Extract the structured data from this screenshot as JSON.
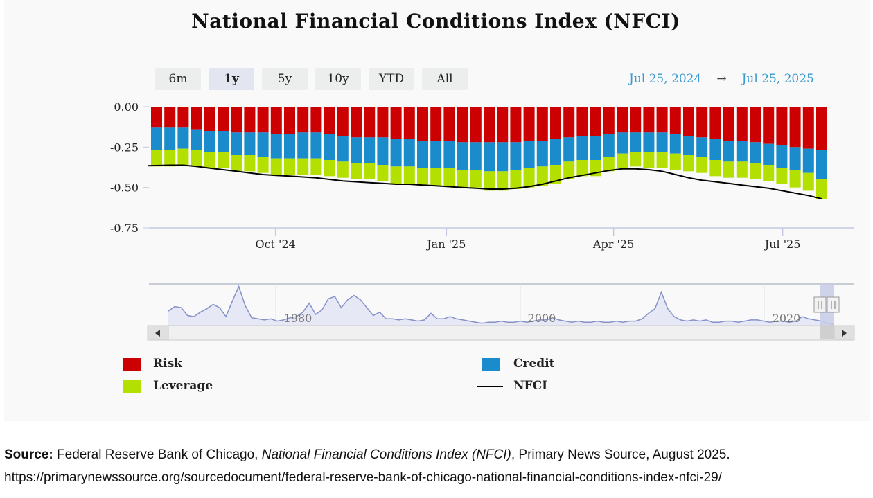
{
  "chart_data": {
    "type": "bar",
    "title": "National Financial Conditions Index (NFCI)",
    "range_buttons": [
      "6m",
      "1y",
      "5y",
      "10y",
      "YTD",
      "All"
    ],
    "active_range": "1y",
    "date_from": "Jul 25, 2024",
    "date_arrow": "→",
    "date_to": "Jul 25, 2025",
    "ylim": [
      -0.75,
      0.0
    ],
    "yticks": [
      "0.00",
      "-0.25",
      "-0.50",
      "-0.75"
    ],
    "ytick_values": [
      0.0,
      -0.25,
      -0.5,
      -0.75
    ],
    "xticks": [
      "Oct '24",
      "Jan '25",
      "Apr '25",
      "Jul '25"
    ],
    "xtick_dates": [
      "2024-10-01",
      "2025-01-01",
      "2025-04-01",
      "2025-07-01"
    ],
    "stacked": true,
    "grid": false,
    "legend_position": "bottom",
    "series": [
      {
        "name": "Risk",
        "color": "#cc0000",
        "values": [
          -0.13,
          -0.13,
          -0.13,
          -0.14,
          -0.15,
          -0.15,
          -0.16,
          -0.16,
          -0.16,
          -0.17,
          -0.17,
          -0.16,
          -0.16,
          -0.17,
          -0.18,
          -0.19,
          -0.19,
          -0.19,
          -0.2,
          -0.2,
          -0.21,
          -0.21,
          -0.21,
          -0.22,
          -0.22,
          -0.22,
          -0.22,
          -0.22,
          -0.21,
          -0.21,
          -0.2,
          -0.19,
          -0.18,
          -0.18,
          -0.17,
          -0.16,
          -0.16,
          -0.16,
          -0.16,
          -0.17,
          -0.18,
          -0.19,
          -0.2,
          -0.21,
          -0.21,
          -0.22,
          -0.23,
          -0.24,
          -0.25,
          -0.26,
          -0.27
        ]
      },
      {
        "name": "Credit",
        "color": "#1a8ccc",
        "values": [
          -0.14,
          -0.14,
          -0.13,
          -0.13,
          -0.13,
          -0.13,
          -0.14,
          -0.14,
          -0.15,
          -0.15,
          -0.15,
          -0.16,
          -0.16,
          -0.16,
          -0.16,
          -0.16,
          -0.16,
          -0.17,
          -0.17,
          -0.17,
          -0.17,
          -0.17,
          -0.17,
          -0.17,
          -0.17,
          -0.18,
          -0.18,
          -0.17,
          -0.17,
          -0.16,
          -0.16,
          -0.15,
          -0.15,
          -0.15,
          -0.14,
          -0.13,
          -0.12,
          -0.12,
          -0.12,
          -0.12,
          -0.12,
          -0.12,
          -0.13,
          -0.13,
          -0.13,
          -0.13,
          -0.13,
          -0.14,
          -0.14,
          -0.15,
          -0.18
        ]
      },
      {
        "name": "Leverage",
        "color": "#b3e000",
        "values": [
          -0.1,
          -0.1,
          -0.1,
          -0.1,
          -0.1,
          -0.1,
          -0.1,
          -0.1,
          -0.1,
          -0.1,
          -0.1,
          -0.1,
          -0.1,
          -0.1,
          -0.1,
          -0.1,
          -0.1,
          -0.1,
          -0.11,
          -0.11,
          -0.11,
          -0.11,
          -0.11,
          -0.11,
          -0.11,
          -0.12,
          -0.12,
          -0.12,
          -0.12,
          -0.12,
          -0.12,
          -0.11,
          -0.1,
          -0.1,
          -0.09,
          -0.09,
          -0.09,
          -0.1,
          -0.1,
          -0.1,
          -0.1,
          -0.1,
          -0.1,
          -0.1,
          -0.1,
          -0.1,
          -0.1,
          -0.1,
          -0.11,
          -0.11,
          -0.12
        ]
      },
      {
        "name": "NFCI",
        "color": "#000000",
        "type": "line",
        "values": [
          -0.365,
          -0.362,
          -0.362,
          -0.37,
          -0.38,
          -0.39,
          -0.4,
          -0.41,
          -0.42,
          -0.425,
          -0.43,
          -0.435,
          -0.44,
          -0.45,
          -0.46,
          -0.465,
          -0.47,
          -0.475,
          -0.48,
          -0.48,
          -0.485,
          -0.49,
          -0.495,
          -0.5,
          -0.505,
          -0.51,
          -0.51,
          -0.505,
          -0.495,
          -0.48,
          -0.46,
          -0.44,
          -0.425,
          -0.41,
          -0.395,
          -0.385,
          -0.385,
          -0.39,
          -0.4,
          -0.42,
          -0.44,
          -0.455,
          -0.465,
          -0.475,
          -0.485,
          -0.495,
          -0.505,
          -0.52,
          -0.535,
          -0.55,
          -0.57
        ]
      }
    ],
    "navigator": {
      "labels": [
        "1980",
        "2000",
        "2020"
      ],
      "values": [
        0.7,
        1.1,
        1.0,
        0.3,
        0.2,
        0.6,
        0.9,
        1.3,
        1.0,
        0.2,
        1.6,
        2.9,
        1.2,
        0.1,
        0.0,
        -0.1,
        0.0,
        -0.2,
        -0.1,
        0.1,
        0.2,
        0.6,
        1.4,
        0.4,
        0.8,
        1.8,
        2.0,
        1.0,
        1.7,
        2.1,
        1.7,
        1.0,
        0.3,
        0.6,
        0.0,
        0.0,
        -0.1,
        0.0,
        -0.1,
        -0.2,
        -0.1,
        0.5,
        0.0,
        0.0,
        0.2,
        0.0,
        -0.1,
        -0.2,
        -0.3,
        -0.4,
        -0.3,
        -0.3,
        -0.2,
        -0.3,
        -0.3,
        -0.2,
        -0.3,
        -0.2,
        -0.1,
        -0.1,
        0.1,
        -0.1,
        -0.2,
        -0.3,
        -0.2,
        -0.3,
        -0.3,
        -0.2,
        -0.3,
        -0.3,
        -0.2,
        -0.3,
        -0.2,
        -0.2,
        0.0,
        0.5,
        0.9,
        2.4,
        0.9,
        0.2,
        -0.1,
        -0.2,
        -0.1,
        -0.2,
        -0.1,
        -0.3,
        -0.3,
        -0.2,
        -0.2,
        -0.3,
        -0.2,
        -0.1,
        -0.1,
        -0.2,
        -0.3,
        -0.2,
        -0.2,
        -0.3,
        -0.2,
        0.2,
        0.0,
        -0.1,
        -0.2,
        -0.4,
        -0.5
      ]
    }
  },
  "legend": {
    "risk": "Risk",
    "credit": "Credit",
    "leverage": "Leverage",
    "nfci": "NFCI"
  },
  "source": {
    "label": "Source:",
    "text_before": " Federal Reserve Bank of Chicago, ",
    "italic_title": "National Financial Conditions Index (NFCI)",
    "text_after": ", Primary News Source, August 2025.",
    "url": "https://primarynewssource.org/sourcedocument/federal-reserve-bank-of-chicago-national-financial-conditions-index-nfci-29/"
  }
}
